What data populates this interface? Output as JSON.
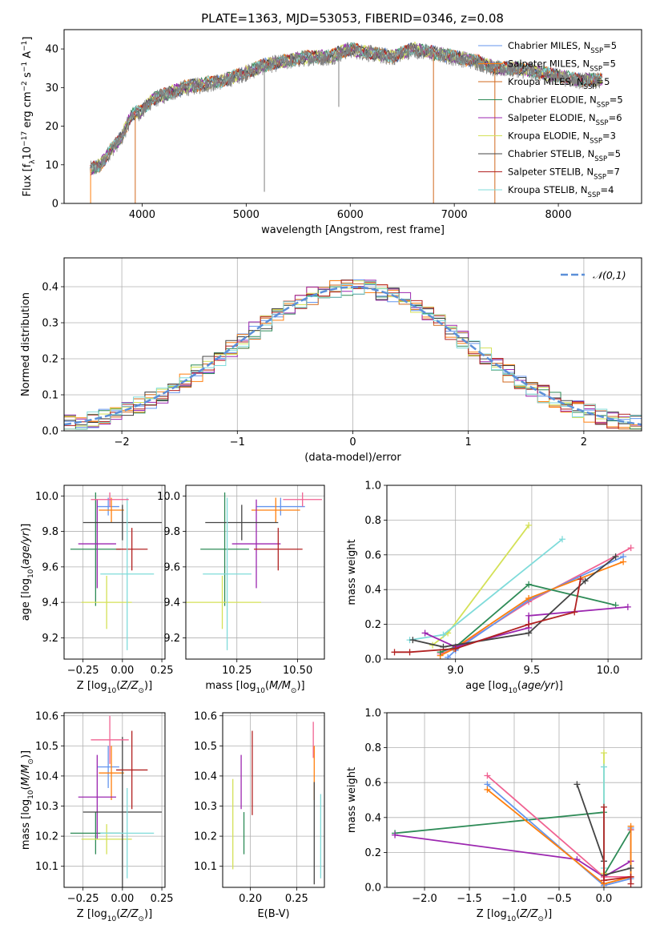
{
  "title": "PLATE=1363, MJD=53053, FIBERID=0346, z=0.08",
  "colors": {
    "c_miles": "#6495ed",
    "s_miles": "#ff7f0e",
    "k_miles": "#d2691e",
    "c_elodie": "#2e8b57",
    "s_elodie": "#9c27b0",
    "k_elodie": "#d4e157",
    "c_stelib": "#444444",
    "s_stelib": "#b22222",
    "k_stelib": "#7fdbda",
    "pink": "#f06292",
    "normal": "#5b8fd8"
  },
  "chart_data": [
    {
      "id": "spectrum",
      "type": "line",
      "xlabel": "wavelength [Angstrom, rest frame]",
      "ylabel": "Flux [f_λ10^-17 erg cm^-2 s^-1 A^-1]",
      "xlim": [
        3250,
        8800
      ],
      "ylim": [
        0,
        45
      ],
      "xticks": [
        4000,
        5000,
        6000,
        7000,
        8000
      ],
      "yticks": [
        0,
        10,
        20,
        30,
        40
      ],
      "grid": false,
      "legend_position": "top-right",
      "legend": [
        "Chabrier MILES, N_SSP=5",
        "Salpeter MILES, N_SSP=5",
        "Kroupa MILES, N_SSP=5",
        "Chabrier ELODIE, N_SSP=5",
        "Salpeter ELODIE, N_SSP=6",
        "Kroupa ELODIE, N_SSP=3",
        "Chabrier STELIB, N_SSP=5",
        "Salpeter STELIB, N_SSP=7",
        "Kroupa STELIB, N_SSP=4"
      ],
      "continuum": [
        [
          3500,
          9
        ],
        [
          3600,
          10
        ],
        [
          3700,
          14
        ],
        [
          3800,
          17
        ],
        [
          3900,
          23
        ],
        [
          4000,
          24
        ],
        [
          4100,
          27
        ],
        [
          4200,
          28
        ],
        [
          4400,
          30
        ],
        [
          4600,
          31
        ],
        [
          4800,
          32
        ],
        [
          5000,
          34
        ],
        [
          5200,
          36
        ],
        [
          5400,
          37
        ],
        [
          5600,
          38
        ],
        [
          5800,
          38
        ],
        [
          6000,
          40
        ],
        [
          6200,
          39
        ],
        [
          6400,
          38
        ],
        [
          6600,
          40
        ],
        [
          6800,
          39
        ],
        [
          7000,
          38
        ],
        [
          7200,
          37
        ],
        [
          7400,
          35
        ],
        [
          7600,
          35
        ],
        [
          7800,
          34
        ],
        [
          8000,
          33
        ],
        [
          8200,
          32
        ],
        [
          8400,
          32
        ]
      ],
      "absorption_lines": [
        [
          3934,
          0
        ],
        [
          5175,
          3
        ],
        [
          5890,
          25
        ],
        [
          6800,
          0
        ],
        [
          7390,
          0
        ]
      ]
    },
    {
      "id": "residuals",
      "type": "bar",
      "xlabel": "(data-model)/error",
      "ylabel": "Normed distribution",
      "xlim": [
        -2.5,
        2.5
      ],
      "ylim": [
        0,
        0.48
      ],
      "xticks": [
        -2,
        -1,
        0,
        1,
        2
      ],
      "yticks": [
        0.0,
        0.1,
        0.2,
        0.3,
        0.4
      ],
      "grid": true,
      "legend_position": "top-right",
      "legend": [
        "𝒩(0,1)"
      ]
    },
    {
      "id": "age_Z",
      "type": "scatter",
      "xlabel": "Z [log10(Z/Z⊙)]",
      "ylabel": "age [log10(age/yr)]",
      "xlim": [
        -0.37,
        0.27
      ],
      "ylim": [
        9.08,
        10.06
      ],
      "xticks": [
        -0.25,
        0.0,
        0.25
      ],
      "yticks": [
        9.2,
        9.4,
        9.6,
        9.8,
        10.0
      ],
      "grid": true,
      "points": [
        {
          "c": "c_miles",
          "x": -0.09,
          "xe": 0.07,
          "y": 9.94,
          "ye": 0.05
        },
        {
          "c": "s_miles",
          "x": -0.07,
          "xe": 0.08,
          "y": 9.92,
          "ye": 0.07
        },
        {
          "c": "c_elodie",
          "x": -0.17,
          "xe": 0.16,
          "y": 9.7,
          "ye": 0.32
        },
        {
          "c": "s_elodie",
          "x": -0.16,
          "xe": 0.12,
          "y": 9.73,
          "ye": 0.25
        },
        {
          "c": "k_elodie",
          "x": -0.1,
          "xe": 0.16,
          "y": 9.4,
          "ye": 0.15
        },
        {
          "c": "c_stelib",
          "x": 0.0,
          "xe": 0.25,
          "y": 9.85,
          "ye": 0.1
        },
        {
          "c": "s_stelib",
          "x": 0.06,
          "xe": 0.1,
          "y": 9.7,
          "ye": 0.12
        },
        {
          "c": "k_stelib",
          "x": 0.03,
          "xe": 0.17,
          "y": 9.56,
          "ye": 0.43
        },
        {
          "c": "pink",
          "x": -0.08,
          "xe": 0.12,
          "y": 9.98,
          "ye": 0.04
        }
      ]
    },
    {
      "id": "age_mass",
      "type": "scatter",
      "xlabel": "mass [log10(M/M⊙)]",
      "ylabel": "",
      "xlim": [
        10.04,
        10.61
      ],
      "ylim": [
        9.08,
        10.06
      ],
      "xticks": [
        10.25,
        10.5
      ],
      "yticks": [
        9.2,
        9.4,
        9.6,
        9.8,
        10.0
      ],
      "grid": true,
      "points": [
        {
          "c": "c_miles",
          "x": 10.43,
          "xe": 0.1,
          "y": 9.94,
          "ye": 0.05
        },
        {
          "c": "s_miles",
          "x": 10.41,
          "xe": 0.1,
          "y": 9.92,
          "ye": 0.07
        },
        {
          "c": "c_elodie",
          "x": 10.2,
          "xe": 0.1,
          "y": 9.7,
          "ye": 0.32
        },
        {
          "c": "s_elodie",
          "x": 10.33,
          "xe": 0.1,
          "y": 9.73,
          "ye": 0.25
        },
        {
          "c": "k_elodie",
          "x": 10.19,
          "xe": 0.16,
          "y": 9.4,
          "ye": 0.15
        },
        {
          "c": "c_stelib",
          "x": 10.27,
          "xe": 0.15,
          "y": 9.85,
          "ye": 0.1
        },
        {
          "c": "s_stelib",
          "x": 10.42,
          "xe": 0.1,
          "y": 9.7,
          "ye": 0.12
        },
        {
          "c": "k_stelib",
          "x": 10.21,
          "xe": 0.1,
          "y": 9.56,
          "ye": 0.43
        },
        {
          "c": "pink",
          "x": 10.52,
          "xe": 0.08,
          "y": 9.98,
          "ye": 0.04
        }
      ]
    },
    {
      "id": "weight_age",
      "type": "line",
      "xlabel": "age [log10(age/yr)]",
      "ylabel": "mass weight",
      "xlim": [
        8.55,
        10.22
      ],
      "ylim": [
        0,
        1.0
      ],
      "xticks": [
        9.0,
        9.5,
        10.0
      ],
      "yticks": [
        0.0,
        0.2,
        0.4,
        0.6,
        0.8,
        1.0
      ],
      "grid": true,
      "series": [
        {
          "c": "k_elodie",
          "x": [
            8.85,
            8.95,
            9.48
          ],
          "y": [
            0.08,
            0.15,
            0.77
          ]
        },
        {
          "c": "k_stelib",
          "x": [
            8.7,
            8.92,
            9.7
          ],
          "y": [
            0.11,
            0.14,
            0.69
          ]
        },
        {
          "c": "pink",
          "x": [
            8.9,
            9.0,
            9.48,
            10.15
          ],
          "y": [
            0.03,
            0.06,
            0.33,
            0.64
          ]
        },
        {
          "c": "c_miles",
          "x": [
            8.95,
            9.0,
            9.48,
            10.1
          ],
          "y": [
            0.01,
            0.05,
            0.34,
            0.59
          ]
        },
        {
          "c": "s_miles",
          "x": [
            8.9,
            8.99,
            9.48,
            10.1
          ],
          "y": [
            0.02,
            0.06,
            0.35,
            0.56
          ]
        },
        {
          "c": "c_elodie",
          "x": [
            8.9,
            9.0,
            9.48,
            10.05
          ],
          "y": [
            0.04,
            0.07,
            0.43,
            0.31
          ]
        },
        {
          "c": "s_elodie",
          "x": [
            8.8,
            9.0,
            9.48,
            9.48,
            10.13
          ],
          "y": [
            0.15,
            0.07,
            0.18,
            0.25,
            0.3
          ]
        },
        {
          "c": "c_stelib",
          "x": [
            8.72,
            8.92,
            9.48,
            9.85,
            10.05
          ],
          "y": [
            0.11,
            0.07,
            0.15,
            0.45,
            0.59
          ]
        },
        {
          "c": "s_stelib",
          "x": [
            8.6,
            8.7,
            9.0,
            9.48,
            9.78,
            9.82
          ],
          "y": [
            0.04,
            0.04,
            0.06,
            0.2,
            0.27,
            0.46
          ]
        }
      ]
    },
    {
      "id": "mass_Z",
      "type": "scatter",
      "xlabel": "Z [log10(Z/Z⊙)]",
      "ylabel": "mass [log10(M/M⊙)]",
      "xlim": [
        -0.37,
        0.27
      ],
      "ylim": [
        10.03,
        10.61
      ],
      "xticks": [
        -0.25,
        0.0,
        0.25
      ],
      "yticks": [
        10.1,
        10.2,
        10.3,
        10.4,
        10.5,
        10.6
      ],
      "grid": true,
      "points": [
        {
          "c": "c_miles",
          "x": -0.09,
          "xe": 0.07,
          "y": 10.43,
          "ye": 0.07
        },
        {
          "c": "s_miles",
          "x": -0.07,
          "xe": 0.08,
          "y": 10.41,
          "ye": 0.09
        },
        {
          "c": "c_elodie",
          "x": -0.17,
          "xe": 0.16,
          "y": 10.21,
          "ye": 0.07
        },
        {
          "c": "s_elodie",
          "x": -0.16,
          "xe": 0.12,
          "y": 10.33,
          "ye": 0.14
        },
        {
          "c": "k_elodie",
          "x": -0.1,
          "xe": 0.16,
          "y": 10.19,
          "ye": 0.05
        },
        {
          "c": "c_stelib",
          "x": 0.0,
          "xe": 0.25,
          "y": 10.28,
          "ye": 0.25
        },
        {
          "c": "s_stelib",
          "x": 0.06,
          "xe": 0.1,
          "y": 10.42,
          "ye": 0.13
        },
        {
          "c": "k_stelib",
          "x": 0.03,
          "xe": 0.17,
          "y": 10.21,
          "ye": 0.15
        },
        {
          "c": "pink",
          "x": -0.08,
          "xe": 0.12,
          "y": 10.52,
          "ye": 0.08
        }
      ]
    },
    {
      "id": "mass_ebv",
      "type": "scatter",
      "xlabel": "E(B-V)",
      "ylabel": "",
      "xlim": [
        0.17,
        0.28
      ],
      "ylim": [
        10.03,
        10.61
      ],
      "xticks": [
        0.2,
        0.25
      ],
      "yticks": [
        10.1,
        10.2,
        10.3,
        10.4,
        10.5,
        10.6
      ],
      "grid": true,
      "points": [
        {
          "c": "k_elodie",
          "x": 0.181,
          "xe": 0,
          "y": 10.24,
          "ye": 0.15
        },
        {
          "c": "s_elodie",
          "x": 0.19,
          "xe": 0,
          "y": 10.38,
          "ye": 0.09
        },
        {
          "c": "c_elodie",
          "x": 0.193,
          "xe": 0,
          "y": 10.21,
          "ye": 0.07
        },
        {
          "c": "s_stelib",
          "x": 0.202,
          "xe": 0,
          "y": 10.41,
          "ye": 0.14
        },
        {
          "c": "pink",
          "x": 0.268,
          "xe": 0,
          "y": 10.52,
          "ye": 0.06
        },
        {
          "c": "s_miles",
          "x": 0.269,
          "xe": 0,
          "y": 10.41,
          "ye": 0.09
        },
        {
          "c": "c_stelib",
          "x": 0.269,
          "xe": 0,
          "y": 10.21,
          "ye": 0.17
        },
        {
          "c": "k_stelib",
          "x": 0.276,
          "xe": 0,
          "y": 10.2,
          "ye": 0.14
        }
      ]
    },
    {
      "id": "weight_Z",
      "type": "line",
      "xlabel": "Z [log10(Z/Z⊙)]",
      "ylabel": "mass weight",
      "xlim": [
        -2.42,
        0.42
      ],
      "ylim": [
        0,
        1.0
      ],
      "xticks": [
        -2.0,
        -1.5,
        -1.0,
        -0.5,
        0.0
      ],
      "yticks": [
        0.0,
        0.2,
        0.4,
        0.6,
        0.8,
        1.0
      ],
      "grid": true,
      "series": [
        {
          "c": "c_elodie",
          "x": [
            -2.33,
            0.0,
            0.0,
            0.3
          ],
          "y": [
            0.31,
            0.43,
            0.07,
            0.33
          ]
        },
        {
          "c": "s_elodie",
          "x": [
            -2.33,
            -0.3,
            0.0,
            0.3
          ],
          "y": [
            0.3,
            0.16,
            0.06,
            0.15
          ]
        },
        {
          "c": "pink",
          "x": [
            -1.3,
            0.0,
            0.3,
            0.3
          ],
          "y": [
            0.64,
            0.06,
            0.06,
            0.33
          ]
        },
        {
          "c": "c_miles",
          "x": [
            -1.3,
            0.0,
            0.3,
            0.3
          ],
          "y": [
            0.59,
            0.01,
            0.05,
            0.34
          ]
        },
        {
          "c": "s_miles",
          "x": [
            -1.3,
            0.0,
            0.3,
            0.3
          ],
          "y": [
            0.56,
            0.02,
            0.06,
            0.35
          ]
        },
        {
          "c": "c_stelib",
          "x": [
            -0.3,
            0.0,
            0.0,
            0.3
          ],
          "y": [
            0.59,
            0.15,
            0.07,
            0.11
          ]
        },
        {
          "c": "k_elodie",
          "x": [
            0.0,
            0.0
          ],
          "y": [
            0.77,
            0.08
          ]
        },
        {
          "c": "k_stelib",
          "x": [
            0.0,
            0.0
          ],
          "y": [
            0.69,
            0.11
          ]
        },
        {
          "c": "s_stelib",
          "x": [
            0.0,
            0.0,
            0.3,
            0.3
          ],
          "y": [
            0.46,
            0.04,
            0.06,
            0.02
          ]
        }
      ]
    }
  ]
}
